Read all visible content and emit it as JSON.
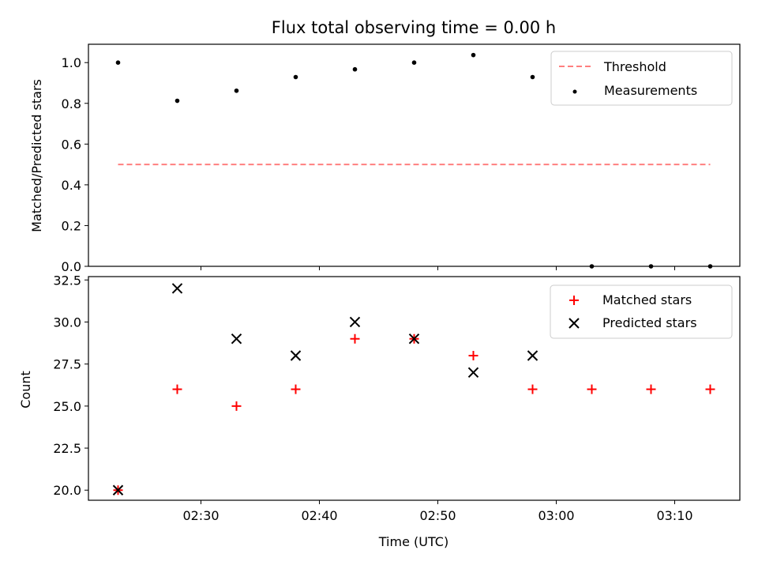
{
  "figure_title": "Flux total observing time = 0.00 h",
  "chart_data": [
    {
      "type": "scatter",
      "ylabel": "Matched/Predicted stars",
      "ylim": [
        0,
        1.09
      ],
      "yticks": [
        0.0,
        0.2,
        0.4,
        0.6,
        0.8,
        1.0
      ],
      "ytick_labels": [
        "0.0",
        "0.2",
        "0.4",
        "0.6",
        "0.8",
        "1.0"
      ],
      "legend_position": "top-right",
      "x": [
        "02:23",
        "02:28",
        "02:33",
        "02:38",
        "02:43",
        "02:48",
        "02:53",
        "02:58",
        "03:03",
        "03:08",
        "03:13"
      ],
      "series": [
        {
          "name": "Threshold",
          "kind": "dashed-line",
          "color": "#ff7f7f",
          "x_range": [
            "02:23",
            "03:13"
          ],
          "value": 0.5
        },
        {
          "name": "Measurements",
          "kind": "dot",
          "color": "#000000",
          "values": [
            1.0,
            0.8125,
            0.862,
            0.929,
            0.967,
            1.0,
            1.037,
            0.929,
            0.0,
            0.0,
            0.0
          ]
        }
      ]
    },
    {
      "type": "scatter",
      "xlabel": "Time (UTC)",
      "ylabel": "Count",
      "ylim": [
        19.4,
        32.7
      ],
      "yticks": [
        20.0,
        22.5,
        25.0,
        27.5,
        30.0,
        32.5
      ],
      "ytick_labels": [
        "20.0",
        "22.5",
        "25.0",
        "27.5",
        "30.0",
        "32.5"
      ],
      "xlim": [
        "02:20:30",
        "03:15:30"
      ],
      "xticks": [
        "02:30",
        "02:40",
        "02:50",
        "03:00",
        "03:10"
      ],
      "legend_position": "top-right",
      "x": [
        "02:23",
        "02:28",
        "02:33",
        "02:38",
        "02:43",
        "02:48",
        "02:53",
        "02:58",
        "03:03",
        "03:08",
        "03:13"
      ],
      "series": [
        {
          "name": "Matched stars",
          "kind": "plus",
          "color": "#ff0000",
          "values": [
            20,
            26,
            25,
            26,
            29,
            29,
            28,
            26,
            26,
            26,
            26
          ]
        },
        {
          "name": "Predicted stars",
          "kind": "x",
          "color": "#000000",
          "values": [
            20,
            32,
            29,
            28,
            30,
            29,
            27,
            28,
            null,
            null,
            null
          ]
        }
      ]
    }
  ]
}
